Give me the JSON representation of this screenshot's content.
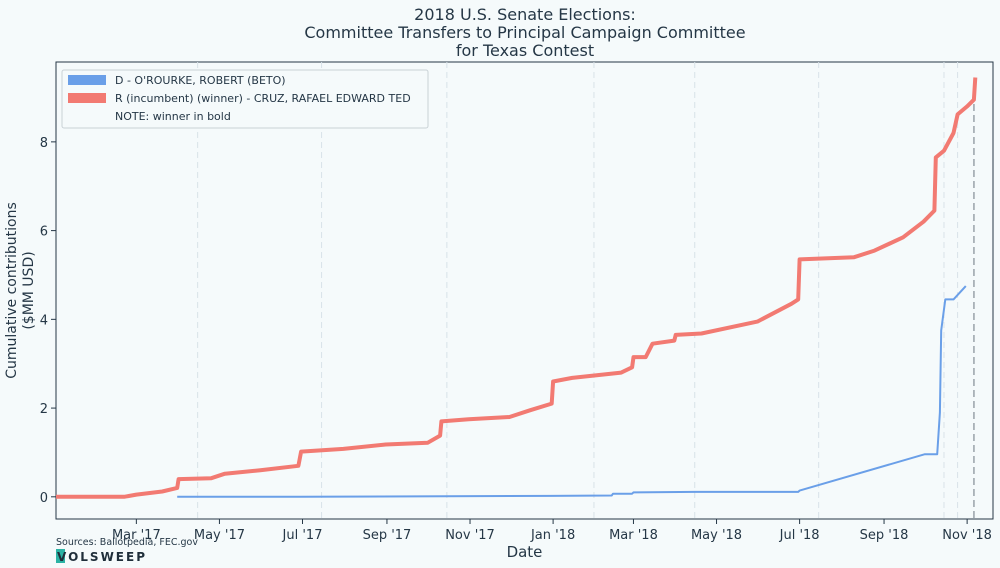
{
  "chart_data": {
    "type": "line",
    "title": [
      "2018 U.S. Senate Elections:",
      "Committee Transfers to Principal Campaign Committee",
      "for Texas Contest"
    ],
    "xlabel": "Date",
    "ylabel": [
      "Cumulative contributions",
      "($MM USD)"
    ],
    "xlim": [
      "2017-01-01",
      "2018-11-20"
    ],
    "ylim": [
      -0.5,
      9.8
    ],
    "yticks": [
      0,
      2,
      4,
      6,
      8
    ],
    "xticks": [
      {
        "date": "2017-03-01",
        "label": "Mar '17"
      },
      {
        "date": "2017-05-01",
        "label": "May '17"
      },
      {
        "date": "2017-07-01",
        "label": "Jul '17"
      },
      {
        "date": "2017-09-01",
        "label": "Sep '17"
      },
      {
        "date": "2017-11-01",
        "label": "Nov '17"
      },
      {
        "date": "2018-01-01",
        "label": "Jan '18"
      },
      {
        "date": "2018-03-01",
        "label": "Mar '18"
      },
      {
        "date": "2018-05-01",
        "label": "May '18"
      },
      {
        "date": "2018-07-01",
        "label": "Jul '18"
      },
      {
        "date": "2018-09-01",
        "label": "Sep '18"
      },
      {
        "date": "2018-11-01",
        "label": "Nov '18"
      }
    ],
    "quarter_lines": [
      "2017-04-15",
      "2017-07-15",
      "2017-10-15",
      "2018-01-31",
      "2018-04-15",
      "2018-07-15",
      "2018-10-15",
      "2018-10-25"
    ],
    "election_day": "2018-11-06",
    "grid": true,
    "legend_position": "top-left",
    "legend_note": "NOTE: winner in bold",
    "series": [
      {
        "name": "D - O'ROURKE, ROBERT (BETO)",
        "color": "#6a9fe8",
        "bold": false,
        "points": [
          [
            "2017-03-31",
            0.0
          ],
          [
            "2017-06-30",
            0.0
          ],
          [
            "2017-12-31",
            0.02
          ],
          [
            "2018-02-13",
            0.03
          ],
          [
            "2018-02-14",
            0.07
          ],
          [
            "2018-02-28",
            0.07
          ],
          [
            "2018-03-01",
            0.1
          ],
          [
            "2018-04-15",
            0.11
          ],
          [
            "2018-06-30",
            0.11
          ],
          [
            "2018-07-01",
            0.14
          ],
          [
            "2018-10-01",
            0.96
          ],
          [
            "2018-10-10",
            0.96
          ],
          [
            "2018-10-12",
            1.9
          ],
          [
            "2018-10-13",
            3.75
          ],
          [
            "2018-10-16",
            4.45
          ],
          [
            "2018-10-22",
            4.45
          ],
          [
            "2018-10-31",
            4.75
          ]
        ]
      },
      {
        "name": "R (incumbent) (winner) - CRUZ, RAFAEL EDWARD  TED",
        "color": "#f27a72",
        "bold": true,
        "points": [
          [
            "2017-01-01",
            0.0
          ],
          [
            "2017-02-20",
            0.0
          ],
          [
            "2017-03-01",
            0.05
          ],
          [
            "2017-03-20",
            0.12
          ],
          [
            "2017-03-31",
            0.2
          ],
          [
            "2017-04-01",
            0.4
          ],
          [
            "2017-04-25",
            0.42
          ],
          [
            "2017-05-05",
            0.52
          ],
          [
            "2017-05-31",
            0.6
          ],
          [
            "2017-06-28",
            0.7
          ],
          [
            "2017-06-30",
            1.02
          ],
          [
            "2017-07-31",
            1.08
          ],
          [
            "2017-08-31",
            1.18
          ],
          [
            "2017-10-01",
            1.22
          ],
          [
            "2017-10-10",
            1.38
          ],
          [
            "2017-10-11",
            1.7
          ],
          [
            "2017-10-31",
            1.75
          ],
          [
            "2017-11-30",
            1.8
          ],
          [
            "2017-12-15",
            1.95
          ],
          [
            "2017-12-31",
            2.1
          ],
          [
            "2018-01-01",
            2.6
          ],
          [
            "2018-01-15",
            2.68
          ],
          [
            "2018-02-20",
            2.8
          ],
          [
            "2018-02-28",
            2.92
          ],
          [
            "2018-03-01",
            3.15
          ],
          [
            "2018-03-10",
            3.15
          ],
          [
            "2018-03-15",
            3.45
          ],
          [
            "2018-03-31",
            3.52
          ],
          [
            "2018-04-01",
            3.65
          ],
          [
            "2018-04-20",
            3.68
          ],
          [
            "2018-05-31",
            3.95
          ],
          [
            "2018-06-25",
            4.35
          ],
          [
            "2018-06-30",
            4.45
          ],
          [
            "2018-07-01",
            5.35
          ],
          [
            "2018-08-10",
            5.4
          ],
          [
            "2018-08-25",
            5.55
          ],
          [
            "2018-09-15",
            5.85
          ],
          [
            "2018-09-30",
            6.2
          ],
          [
            "2018-10-08",
            6.45
          ],
          [
            "2018-10-09",
            7.65
          ],
          [
            "2018-10-15",
            7.8
          ],
          [
            "2018-10-22",
            8.2
          ],
          [
            "2018-10-25",
            8.62
          ],
          [
            "2018-11-01",
            8.8
          ],
          [
            "2018-11-06",
            8.95
          ],
          [
            "2018-11-07",
            9.45
          ]
        ]
      }
    ],
    "source": "Sources: Ballotpedia, FEC.gov"
  },
  "brand": {
    "logo_text": "VOLSWEEP"
  }
}
